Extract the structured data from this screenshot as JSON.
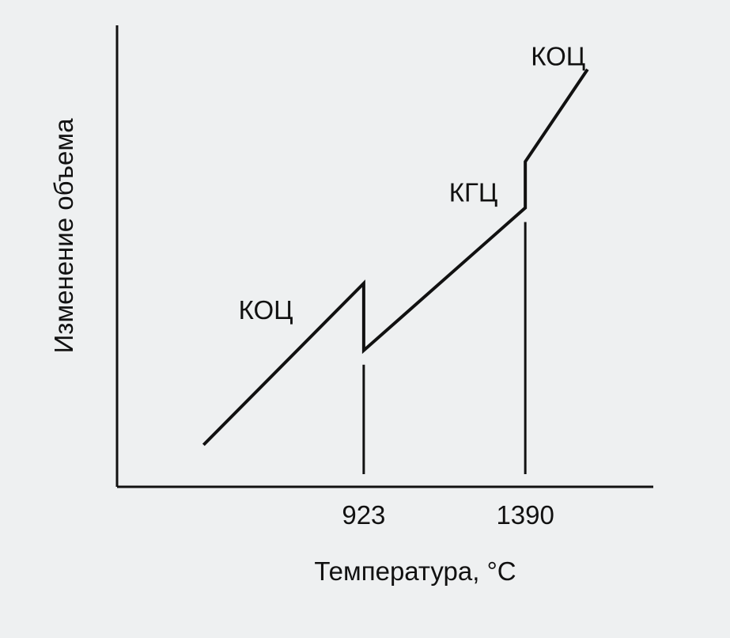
{
  "chart_data": {
    "type": "line",
    "title": "",
    "xlabel": "Температура, °С",
    "ylabel": "Изменение объема",
    "x_ticks": [
      "923",
      "1390"
    ],
    "series": [
      {
        "points": [
          {
            "x": 460,
            "y": 5
          },
          {
            "x": 923,
            "y": 82
          },
          {
            "x": 923,
            "y": 50
          },
          {
            "x": 1390,
            "y": 118
          },
          {
            "x": 1390,
            "y": 140
          },
          {
            "x": 1570,
            "y": 184
          }
        ]
      }
    ],
    "marker_lines": [
      923,
      1390
    ],
    "phase_labels": [
      {
        "text": "КОЦ",
        "x": 640,
        "y": 65
      },
      {
        "text": "КГЦ",
        "x": 1240,
        "y": 121
      },
      {
        "text": "КОЦ",
        "x": 1485,
        "y": 186
      }
    ],
    "xlim": [
      210,
      1760
    ],
    "ylim": [
      -15,
      205
    ],
    "grid": false,
    "legend": "none",
    "colors": {
      "line": "#111111",
      "background": "#eef0f1"
    }
  }
}
